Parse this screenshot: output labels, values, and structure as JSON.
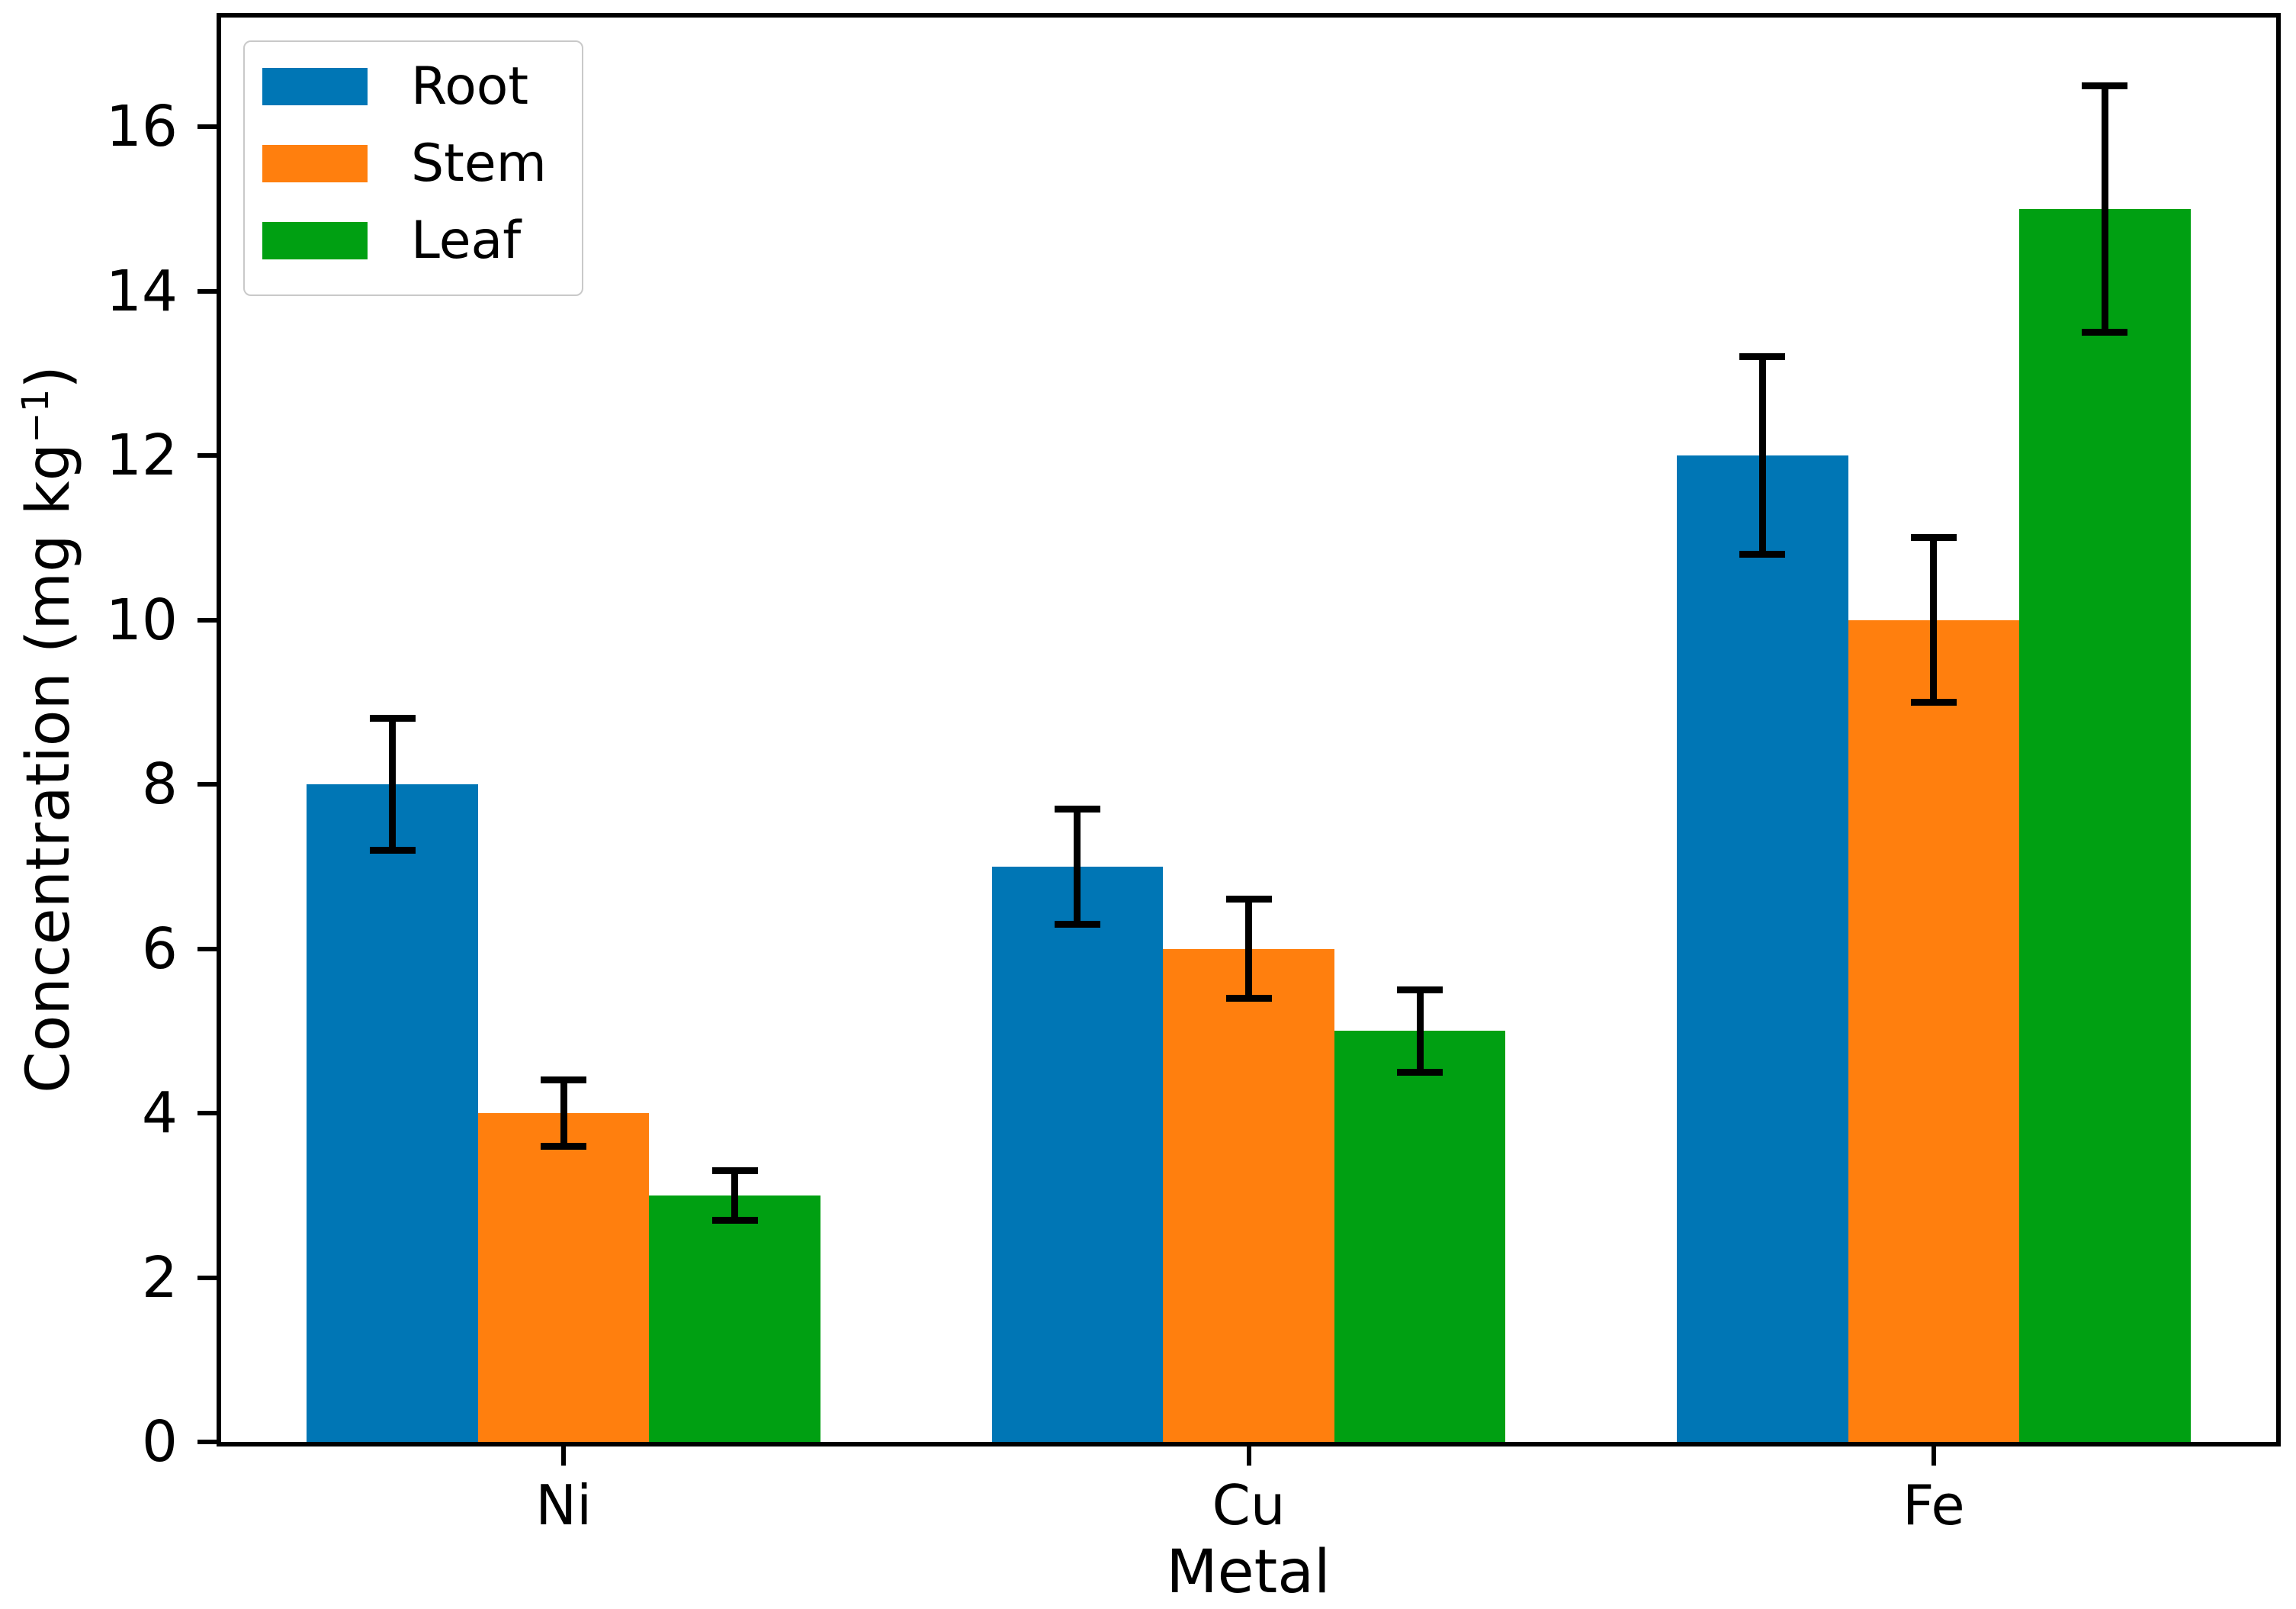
{
  "chart_data": {
    "type": "bar",
    "title": "",
    "xlabel": "Metal",
    "ylabel": "Concentration (mg kg⁻¹)",
    "ylabel_parts": {
      "main": "Concentration (mg kg",
      "sup": "−1",
      "end": ")"
    },
    "categories": [
      "Ni",
      "Cu",
      "Fe"
    ],
    "series": [
      {
        "name": "Root",
        "color": "#0076b5",
        "values": [
          8,
          7,
          12
        ],
        "errors": [
          0.8,
          0.7,
          1.2
        ]
      },
      {
        "name": "Stem",
        "color": "#ff7f0e",
        "values": [
          4,
          6,
          10
        ],
        "errors": [
          0.4,
          0.6,
          1.0
        ]
      },
      {
        "name": "Leaf",
        "color": "#00a012",
        "values": [
          3,
          5,
          15
        ],
        "errors": [
          0.3,
          0.5,
          1.5
        ]
      }
    ],
    "y_ticks": [
      0,
      2,
      4,
      6,
      8,
      10,
      12,
      14,
      16
    ],
    "ylim": [
      0,
      17.33
    ],
    "grid": false,
    "legend_position": "upper left",
    "error_bar_color": "#000000",
    "axis_color": "#000000",
    "background_color": "#ffffff"
  }
}
